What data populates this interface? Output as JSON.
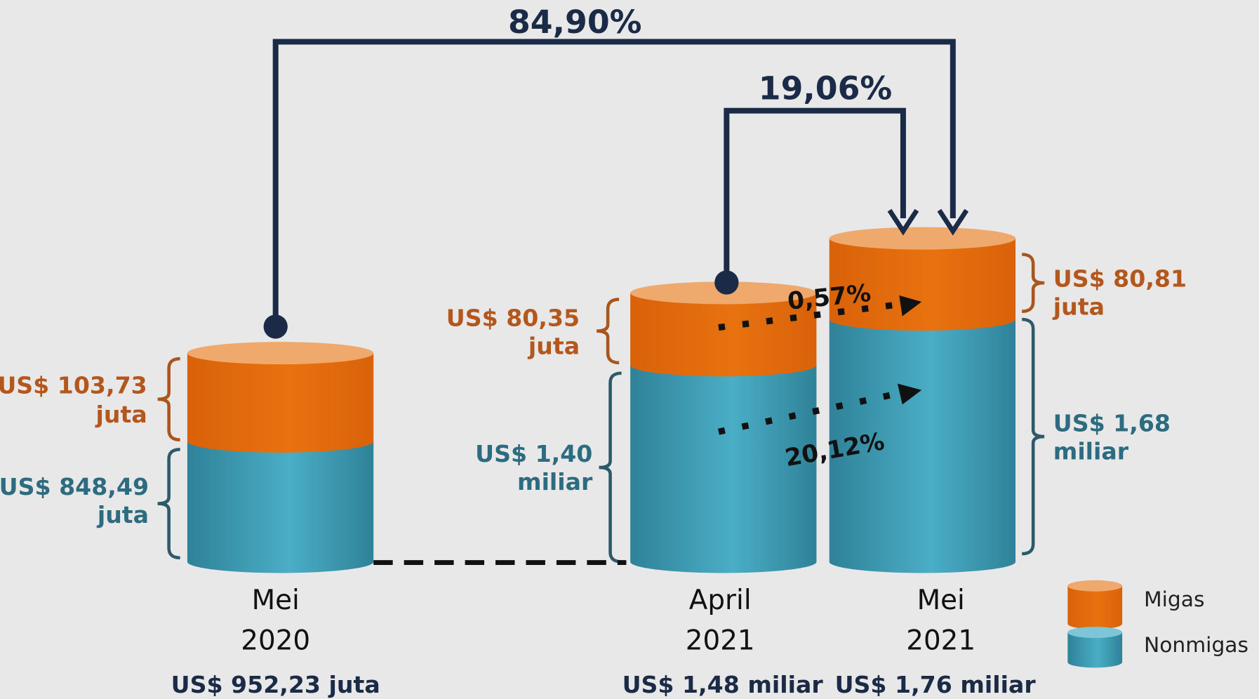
{
  "changes": {
    "total": "84,90%",
    "month": "19,06%",
    "migas": "0,57%",
    "nonmigas": "20,12%"
  },
  "bars": [
    {
      "period": [
        "Mei",
        "2020"
      ],
      "total": "US$ 952,23 juta",
      "migas": [
        "US$ 103,73",
        "juta"
      ],
      "nonmigas": [
        "US$ 848,49",
        "juta"
      ]
    },
    {
      "period": [
        "April",
        "2021"
      ],
      "total": "US$ 1,48 miliar",
      "migas": [
        "US$ 80,35",
        "juta"
      ],
      "nonmigas": [
        "US$ 1,40",
        "miliar"
      ]
    },
    {
      "period": [
        "Mei",
        "2021"
      ],
      "total": "US$ 1,76 miliar",
      "migas": [
        "US$ 80,81",
        "juta"
      ],
      "nonmigas": [
        "US$ 1,68",
        "miliar"
      ]
    }
  ],
  "legend": [
    "Migas",
    "Nonmigas"
  ]
}
